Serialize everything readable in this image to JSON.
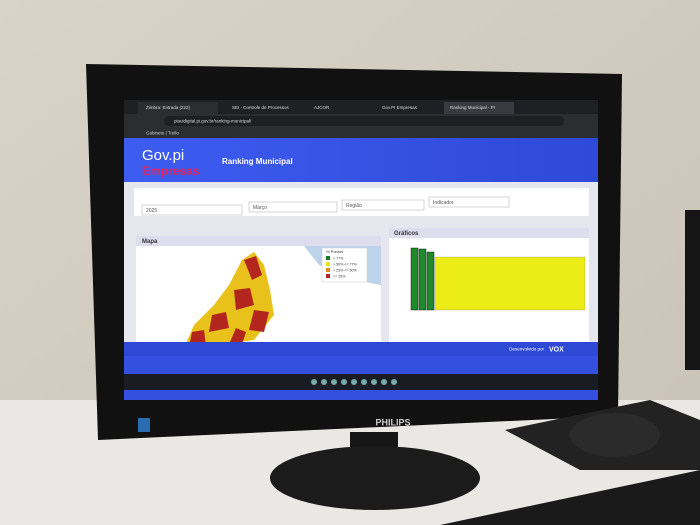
{
  "browser": {
    "tabs": [
      "Zimbra: Entrada (222)",
      "SEI - Controle de Processos",
      "AJCOR",
      "Gov.PI Empresas",
      "Ranking Municipal - PI"
    ],
    "url": "piauidigital.pi.gov.br/ranking-municipal/",
    "bookmark": "Gabinete | Trello"
  },
  "header": {
    "logo_top": "Gov.pi",
    "logo_bottom": "Empresas",
    "title": "Ranking Municipal"
  },
  "filters": [
    "2025",
    "Março",
    "Região",
    "Indicador"
  ],
  "panels": {
    "map_title": "Mapa",
    "chart_title": "Gráficos"
  },
  "legend": {
    "title": "% Pontos",
    "items": [
      "> 77%",
      "> 50% <= 77%",
      "> 25% <= 50%",
      "<= 25%"
    ]
  },
  "footer": {
    "credit": "Desenvolvido por",
    "brand": "VOX"
  },
  "monitor": {
    "brand": "PHILIPS"
  }
}
